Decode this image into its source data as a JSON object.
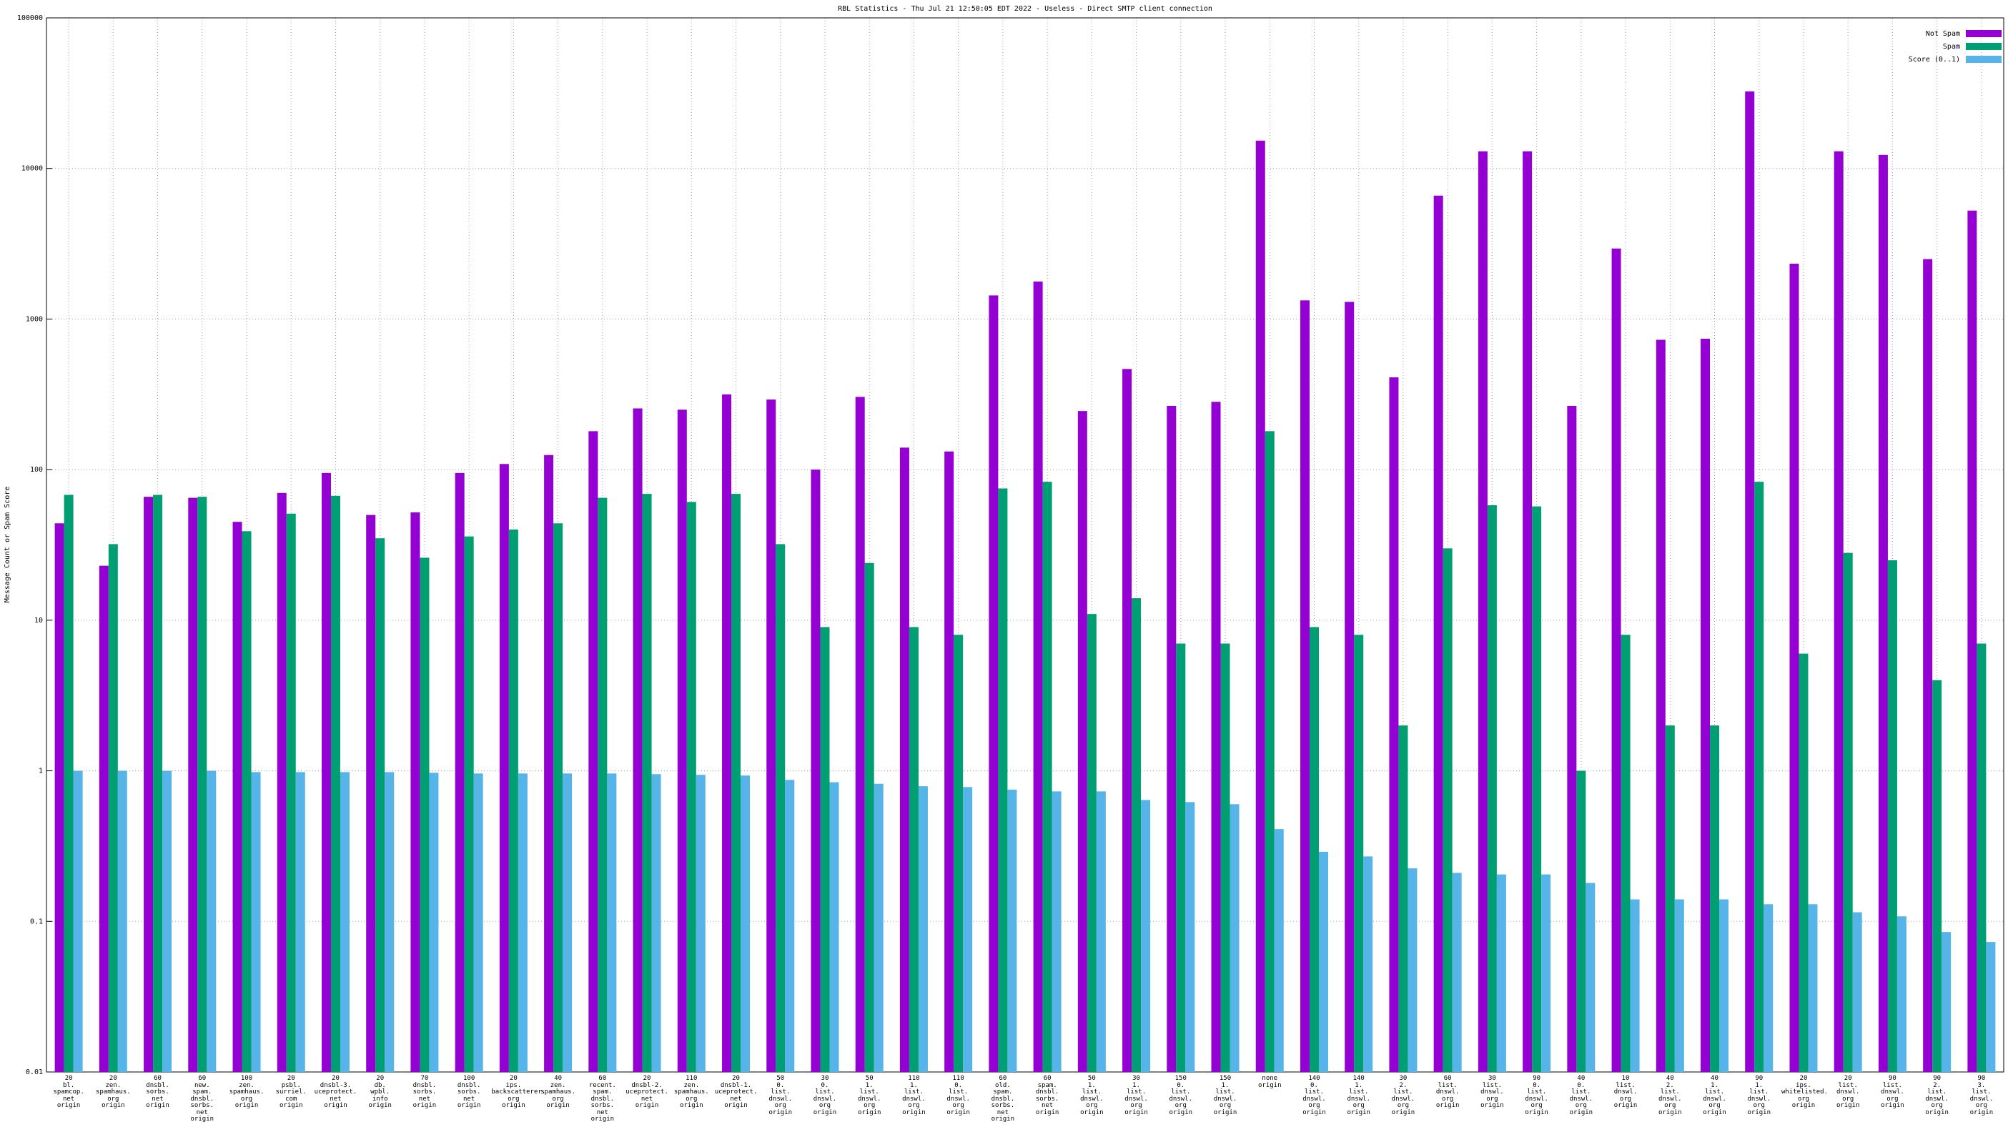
{
  "chart_data": {
    "type": "bar",
    "yscale": "log",
    "title": "RBL Statistics - Thu Jul 21 12:50:05 EDT 2022 - Useless - Direct SMTP client connection",
    "y_label": "Message Count or Spam Score",
    "legend": "top-right",
    "grid": true,
    "ylim": [
      0.01,
      100000
    ],
    "yticks": [
      0.01,
      0.1,
      1,
      10,
      100,
      1000,
      10000,
      100000
    ],
    "categories": [
      "20\nbl.\nspamcop.\nnet\norigin",
      "20\nzen.\nspamhaus.\norg\norigin",
      "60\ndnsbl.\nsorbs.\nnet\norigin",
      "60\nnew.\nspam.\ndnsbl.\nsorbs.\nnet\norigin",
      "100\nzen.\nspamhaus.\norg\norigin",
      "20\npsbl.\nsurriel.\ncom\norigin",
      "20\ndnsbl-3.\nuceprotect.\nnet\norigin",
      "20\ndb.\nwpbl.\ninfo\norigin",
      "70\ndnsbl.\nsorbs.\nnet\norigin",
      "100\ndnsbl.\nsorbs.\nnet\norigin",
      "20\nips.\nbackscatterer.\norg\norigin",
      "40\nzen.\nspamhaus.\norg\norigin",
      "60\nrecent.\nspam.\ndnsbl.\nsorbs.\nnet\norigin",
      "20\ndnsbl-2.\nuceprotect.\nnet\norigin",
      "110\nzen.\nspamhaus.\norg\norigin",
      "20\ndnsbl-1.\nuceprotect.\nnet\norigin",
      "50\n0.\nlist.\ndnswl.\norg\norigin",
      "30\n0.\nlist.\ndnswl.\norg\norigin",
      "50\n1.\nlist.\ndnswl.\norg\norigin",
      "110\n1.\nlist.\ndnswl.\norg\norigin",
      "110\n0.\nlist.\ndnswl.\norg\norigin",
      "60\nold.\nspam.\ndnsbl.\nsorbs.\nnet\norigin",
      "60\nspam.\ndnsbl.\nsorbs.\nnet\norigin",
      "50\n1.\nlist.\ndnswl.\norg\norigin",
      "30\n1.\nlist.\ndnswl.\norg\norigin",
      "150\n0.\nlist.\ndnswl.\norg\norigin",
      "150\n1.\nlist.\ndnswl.\norg\norigin",
      "none\norigin",
      "140\n0.\nlist.\ndnswl.\norg\norigin",
      "140\n1.\nlist.\ndnswl.\norg\norigin",
      "30\n2.\nlist.\ndnswl.\norg\norigin",
      "60\nlist.\ndnswl.\norg\norigin",
      "30\nlist.\ndnswl.\norg\norigin",
      "90\n0.\nlist.\ndnswl.\norg\norigin",
      "40\n0.\nlist.\ndnswl.\norg\norigin",
      "10\nlist.\ndnswl.\norg\norigin",
      "40\n2.\nlist.\ndnswl.\norg\norigin",
      "40\n1.\nlist.\ndnswl.\norg\norigin",
      "90\n1.\nlist.\ndnswl.\norg\norigin",
      "20\nips.\nwhitelisted.\norg\norigin",
      "20\nlist.\ndnswl.\norg\norigin",
      "90\nlist.\ndnswl.\norg\norigin",
      "90\n2.\nlist.\ndnswl.\norg\norigin",
      "90\n3.\nlist.\ndnswl.\norg\norigin"
    ],
    "series": [
      {
        "name": "Not Spam",
        "color": "#9400d3",
        "values": [
          44,
          23,
          66,
          65,
          45,
          70,
          95,
          50,
          52,
          95,
          109,
          125,
          180,
          255,
          250,
          316,
          292,
          100,
          304,
          140,
          132,
          1435,
          1775,
          245,
          466,
          265,
          282,
          15300,
          1330,
          1300,
          410,
          6600,
          13000,
          13000,
          265,
          2940,
          728,
          740,
          32500,
          2330,
          13000,
          12300,
          2500,
          5250
        ]
      },
      {
        "name": "Spam",
        "color": "#009e73",
        "values": [
          68,
          32,
          68,
          66,
          39,
          51,
          67,
          35,
          26,
          36,
          40,
          44,
          65,
          69,
          61,
          69,
          32,
          9,
          24,
          9,
          8,
          75,
          83,
          11,
          14,
          7,
          7,
          180,
          9,
          8,
          2,
          30,
          58,
          57,
          1,
          8,
          2,
          2,
          83,
          6,
          28,
          25,
          4,
          7
        ]
      },
      {
        "name": "Score (0..1)",
        "color": "#56b4e9",
        "values": [
          1.0,
          1.0,
          1.0,
          1.0,
          0.98,
          0.98,
          0.98,
          0.98,
          0.97,
          0.96,
          0.96,
          0.96,
          0.96,
          0.95,
          0.94,
          0.93,
          0.87,
          0.84,
          0.82,
          0.79,
          0.78,
          0.75,
          0.73,
          0.73,
          0.64,
          0.62,
          0.6,
          0.41,
          0.29,
          0.27,
          0.225,
          0.21,
          0.205,
          0.205,
          0.18,
          0.14,
          0.14,
          0.14,
          0.13,
          0.13,
          0.115,
          0.108,
          0.085,
          0.073
        ]
      }
    ]
  }
}
